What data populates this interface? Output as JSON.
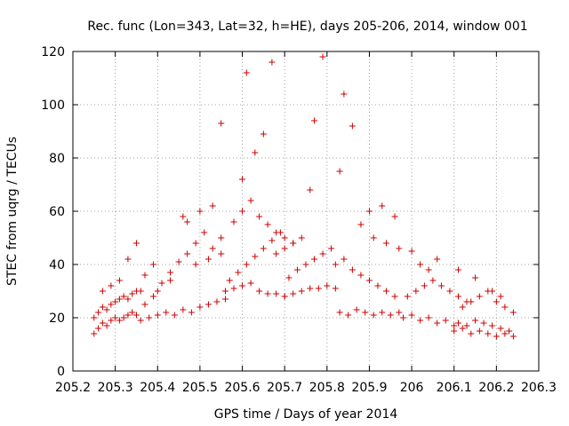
{
  "chart_data": {
    "type": "scatter",
    "title": "Rec. func (Lon=343, Lat=32, h=HE), days 205-206, 2014, window 001",
    "xlabel": "GPS time / Days of year 2014",
    "ylabel": "STEC from uqrg / TECUs",
    "xlim": [
      205.2,
      206.3
    ],
    "ylim": [
      0,
      120
    ],
    "xticks": [
      205.2,
      205.3,
      205.4,
      205.5,
      205.6,
      205.7,
      205.8,
      205.9,
      206.0,
      206.1,
      206.2,
      206.3
    ],
    "xtick_labels": [
      "205.2",
      "205.3",
      "205.4",
      "205.5",
      "205.6",
      "205.7",
      "205.8",
      "205.9",
      "206",
      "206.1",
      "206.2",
      "206.3"
    ],
    "yticks": [
      0,
      20,
      40,
      60,
      80,
      100,
      120
    ],
    "ytick_labels": [
      "0",
      "20",
      "40",
      "60",
      "80",
      "100",
      "120"
    ],
    "grid": true,
    "marker": "+",
    "series": [
      {
        "name": "STEC",
        "color": "#cc0000",
        "x": [
          205.25,
          205.26,
          205.27,
          205.28,
          205.29,
          205.3,
          205.31,
          205.32,
          205.33,
          205.34,
          205.35,
          205.25,
          205.26,
          205.27,
          205.28,
          205.29,
          205.3,
          205.31,
          205.32,
          205.33,
          205.34,
          205.35,
          205.36,
          205.27,
          205.29,
          205.31,
          205.33,
          205.35,
          205.37,
          205.39,
          205.36,
          205.38,
          205.4,
          205.42,
          205.44,
          205.46,
          205.48,
          205.5,
          205.52,
          205.54,
          205.56,
          205.37,
          205.39,
          205.41,
          205.43,
          205.45,
          205.47,
          205.49,
          205.51,
          205.53,
          205.55,
          205.4,
          205.43,
          205.46,
          205.49,
          205.52,
          205.55,
          205.47,
          205.5,
          205.53,
          205.56,
          205.58,
          205.6,
          205.62,
          205.64,
          205.66,
          205.68,
          205.7,
          205.57,
          205.59,
          205.61,
          205.63,
          205.65,
          205.67,
          205.69,
          205.58,
          205.6,
          205.62,
          205.64,
          205.66,
          205.68,
          205.7,
          205.72,
          205.61,
          205.65,
          205.67,
          205.55,
          205.6,
          205.63,
          205.7,
          205.72,
          205.74,
          205.76,
          205.78,
          205.8,
          205.82,
          205.71,
          205.73,
          205.75,
          205.77,
          205.79,
          205.81,
          205.68,
          205.7,
          205.72,
          205.74,
          205.76,
          205.79,
          205.84,
          205.86,
          205.83,
          205.77,
          205.82,
          205.84,
          205.86,
          205.88,
          205.9,
          205.92,
          205.94,
          205.96,
          205.83,
          205.85,
          205.87,
          205.89,
          205.91,
          205.93,
          205.95,
          205.97,
          205.88,
          205.91,
          205.94,
          205.97,
          205.9,
          205.93,
          205.96,
          205.98,
          206.0,
          206.02,
          206.04,
          206.06,
          206.08,
          206.1,
          205.99,
          206.01,
          206.03,
          206.05,
          206.07,
          206.09,
          206.11,
          206.13,
          206.0,
          206.02,
          206.04,
          206.06,
          206.1,
          206.12,
          206.14,
          206.16,
          206.18,
          206.2,
          206.22,
          206.24,
          206.11,
          206.13,
          206.15,
          206.17,
          206.19,
          206.21,
          206.23,
          206.12,
          206.14,
          206.16,
          206.18,
          206.2,
          206.22,
          206.24,
          206.11,
          206.15,
          206.19,
          206.21
        ],
        "y": [
          14,
          16,
          18,
          17,
          19,
          20,
          19,
          20,
          21,
          22,
          21,
          20,
          22,
          24,
          23,
          25,
          26,
          27,
          28,
          27,
          29,
          30,
          30,
          30,
          32,
          34,
          42,
          48,
          36,
          40,
          19,
          20,
          21,
          22,
          21,
          23,
          22,
          24,
          25,
          26,
          27,
          25,
          28,
          33,
          37,
          41,
          44,
          48,
          52,
          46,
          50,
          30,
          34,
          58,
          40,
          42,
          44,
          56,
          60,
          62,
          30,
          31,
          32,
          33,
          30,
          29,
          29,
          28,
          34,
          37,
          40,
          43,
          46,
          49,
          52,
          56,
          60,
          64,
          58,
          55,
          52,
          50,
          48,
          112,
          89,
          116,
          93,
          72,
          82,
          28,
          29,
          30,
          31,
          31,
          32,
          31,
          35,
          38,
          40,
          42,
          44,
          46,
          44,
          46,
          48,
          50,
          68,
          118,
          104,
          92,
          75,
          94,
          40,
          42,
          38,
          36,
          34,
          32,
          30,
          28,
          22,
          21,
          23,
          22,
          21,
          22,
          21,
          22,
          55,
          50,
          48,
          46,
          60,
          62,
          58,
          20,
          21,
          19,
          20,
          18,
          19,
          17,
          28,
          30,
          32,
          34,
          32,
          30,
          28,
          26,
          45,
          40,
          38,
          42,
          15,
          16,
          14,
          15,
          14,
          13,
          14,
          13,
          18,
          17,
          19,
          18,
          17,
          16,
          15,
          24,
          26,
          28,
          30,
          26,
          24,
          22,
          38,
          35,
          30,
          28
        ]
      }
    ]
  }
}
